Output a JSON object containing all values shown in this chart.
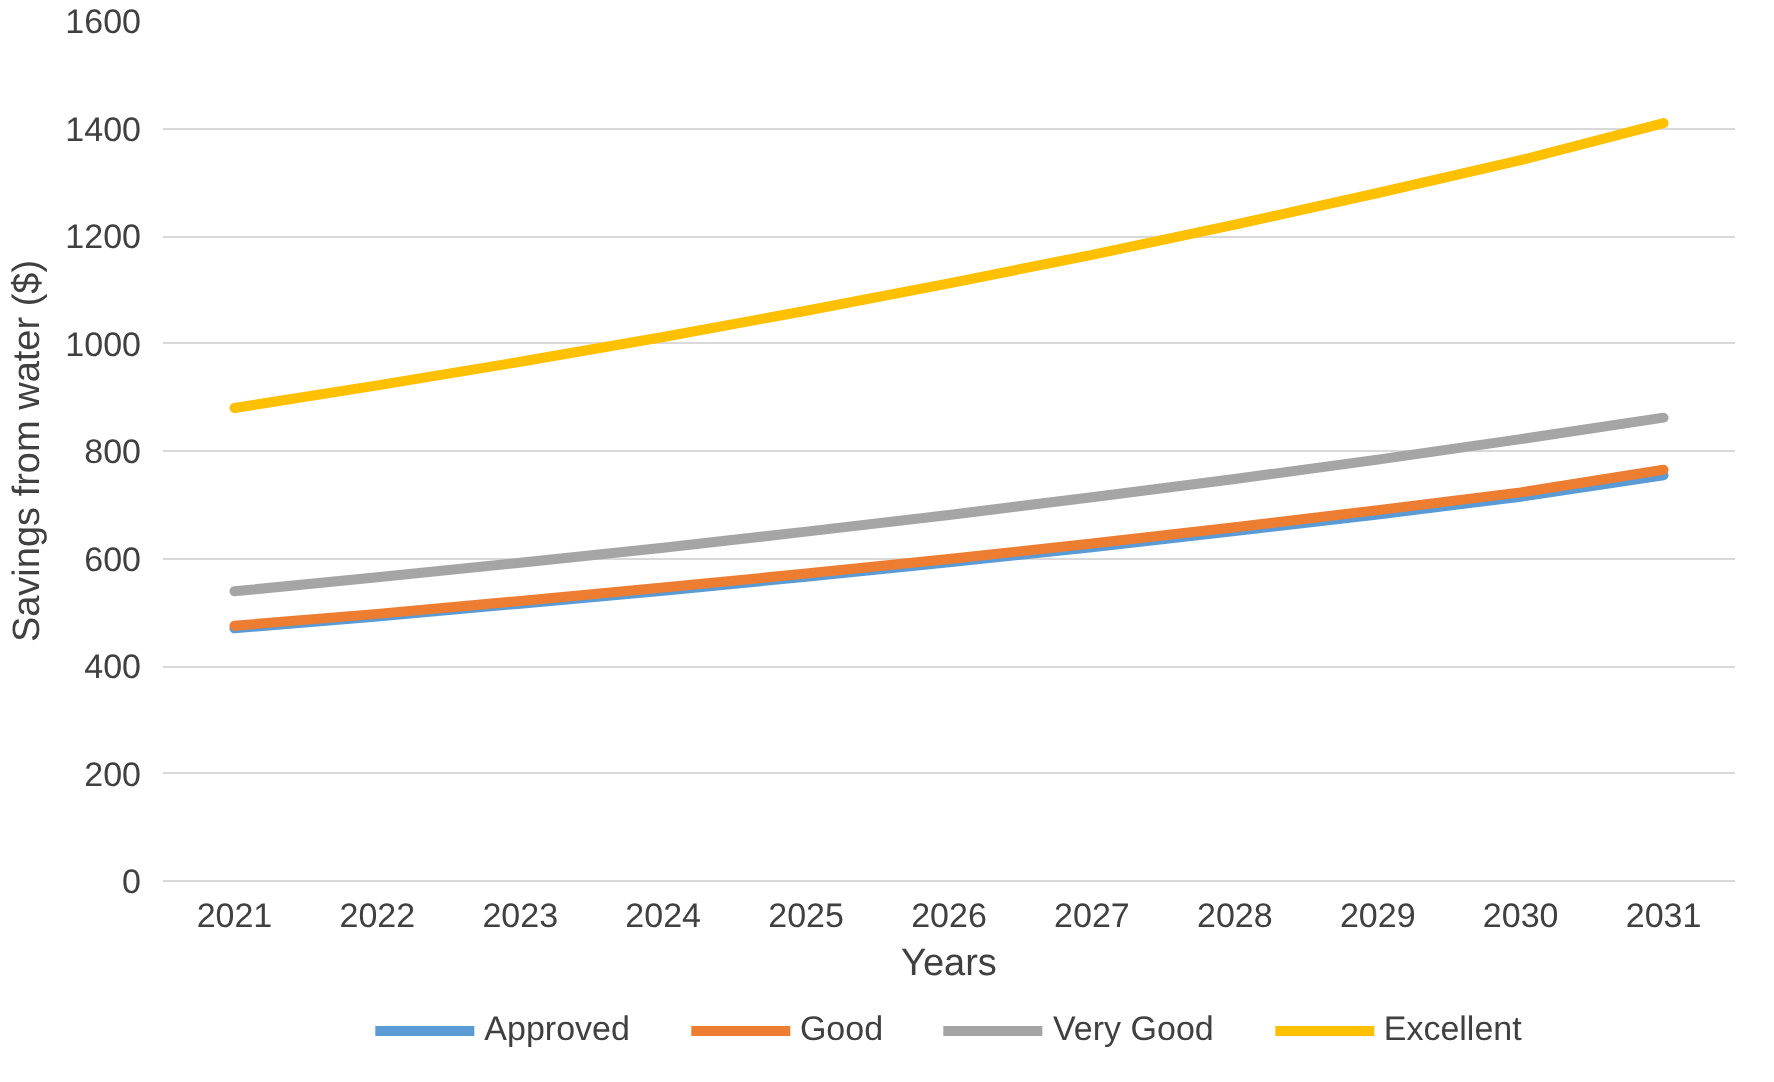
{
  "chart_data": {
    "type": "line",
    "xlabel": "Years",
    "ylabel": "Savings from water ($)",
    "categories": [
      "2021",
      "2022",
      "2023",
      "2024",
      "2025",
      "2026",
      "2027",
      "2028",
      "2029",
      "2030",
      "2031"
    ],
    "series": [
      {
        "name": "Approved",
        "color": "#5b9bd5",
        "values": [
          470,
          492,
          516,
          540,
          566,
          593,
          621,
          651,
          682,
          715,
          755
        ]
      },
      {
        "name": "Good",
        "color": "#ed7d31",
        "values": [
          475,
          497,
          521,
          546,
          572,
          599,
          628,
          658,
          690,
          723,
          765
        ]
      },
      {
        "name": "Very Good",
        "color": "#a5a5a5",
        "values": [
          539,
          565,
          592,
          620,
          650,
          681,
          714,
          748,
          784,
          822,
          862
        ]
      },
      {
        "name": "Excellent",
        "color": "#ffc000",
        "values": [
          880,
          922,
          966,
          1012,
          1061,
          1112,
          1165,
          1221,
          1280,
          1341,
          1410
        ]
      }
    ],
    "ylim": [
      0,
      1600
    ],
    "yticks": [
      0,
      200,
      400,
      600,
      800,
      1000,
      1200,
      1400,
      1600
    ],
    "grid": "y",
    "legend": "bottom",
    "marker": "none",
    "line_style": "solid"
  }
}
